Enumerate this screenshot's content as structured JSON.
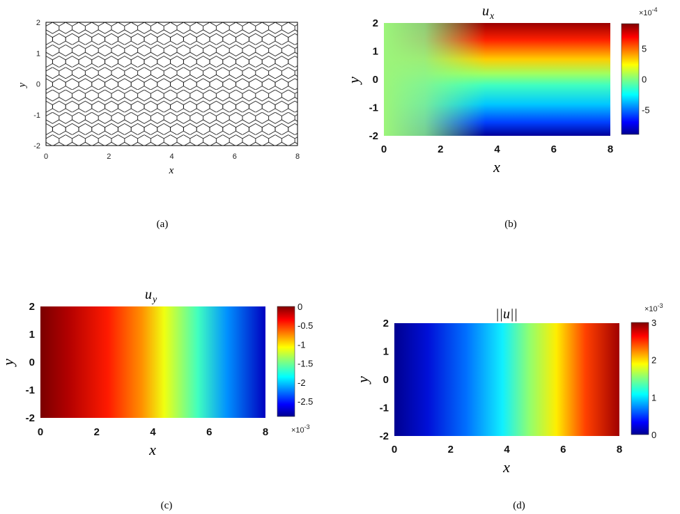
{
  "panels": {
    "a": {
      "caption": "(a)",
      "xlabel": "x",
      "ylabel": "y",
      "xticks": [
        "0",
        "2",
        "4",
        "6",
        "8"
      ],
      "yticks": [
        "2",
        "1",
        "0",
        "-1",
        "-2"
      ]
    },
    "b": {
      "caption": "(b)",
      "title_base": "u",
      "title_sub": "x",
      "xlabel": "x",
      "ylabel": "y",
      "xticks": [
        "0",
        "2",
        "4",
        "6",
        "8"
      ],
      "yticks": [
        "2",
        "1",
        "0",
        "-1",
        "-2"
      ],
      "cbar_ticks": [
        "5",
        "0",
        "-5"
      ],
      "cbar_exp_base": "×10",
      "cbar_exp_pow": "-4"
    },
    "c": {
      "caption": "(c)",
      "title_base": "u",
      "title_sub": "y",
      "xlabel": "x",
      "ylabel": "y",
      "xticks": [
        "0",
        "2",
        "4",
        "6",
        "8"
      ],
      "yticks": [
        "2",
        "1",
        "0",
        "-1",
        "-2"
      ],
      "cbar_ticks": [
        "0",
        "-0.5",
        "-1",
        "-1.5",
        "-2",
        "-2.5"
      ],
      "cbar_exp_base": "×10",
      "cbar_exp_pow": "-3"
    },
    "d": {
      "caption": "(d)",
      "title": "||u||",
      "xlabel": "x",
      "ylabel": "y",
      "xticks": [
        "0",
        "2",
        "4",
        "6",
        "8"
      ],
      "yticks": [
        "2",
        "1",
        "0",
        "-1",
        "-2"
      ],
      "cbar_ticks": [
        "3",
        "2",
        "1",
        "0"
      ],
      "cbar_exp_base": "×10",
      "cbar_exp_pow": "-3"
    }
  },
  "chart_data": [
    {
      "type": "mesh",
      "xlim": [
        0,
        8
      ],
      "ylim": [
        -2,
        2
      ],
      "cell_shape": "hexagonal polygons",
      "grid": false
    },
    {
      "type": "heatmap",
      "title": "u_x",
      "xlim": [
        0,
        8
      ],
      "ylim": [
        -2,
        2
      ],
      "colormap": "jet",
      "clim": [
        -0.0009,
        0.0009
      ],
      "colorbar_ticks": [
        -0.0005,
        0,
        0.0005
      ]
    },
    {
      "type": "heatmap",
      "title": "u_y",
      "xlim": [
        0,
        8
      ],
      "ylim": [
        -2,
        2
      ],
      "colormap": "jet",
      "clim": [
        -0.0029,
        0
      ],
      "colorbar_ticks": [
        -0.0025,
        -0.002,
        -0.0015,
        -0.001,
        -0.0005,
        0
      ]
    },
    {
      "type": "heatmap",
      "title": "||u||",
      "xlim": [
        0,
        8
      ],
      "ylim": [
        -2,
        2
      ],
      "colormap": "jet",
      "clim": [
        0,
        0.003
      ],
      "colorbar_ticks": [
        0,
        0.001,
        0.002,
        0.003
      ]
    }
  ]
}
